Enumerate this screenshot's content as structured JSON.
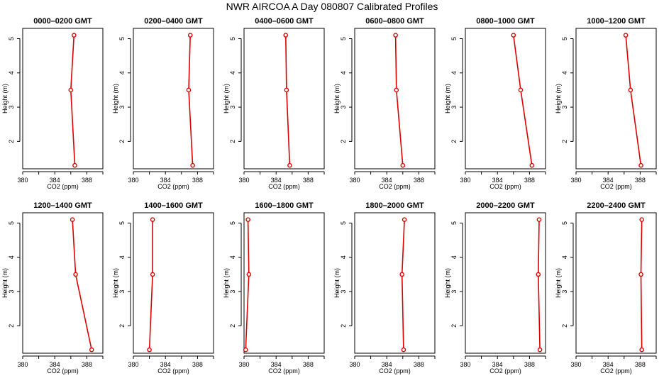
{
  "chart_data": {
    "type": "line",
    "title": "NWR AIRCOA A  Day 080807  Calibrated Profiles",
    "xlabel": "CO2 (ppm)",
    "ylabel": "Height (m)",
    "xlim": [
      380,
      390
    ],
    "ylim": [
      1.2,
      5.3
    ],
    "x_ticks": [
      "380",
      "384",
      "388"
    ],
    "x_tick_values": [
      380,
      382,
      384,
      386,
      388,
      390
    ],
    "y_ticks": [
      "2",
      "3",
      "4",
      "5"
    ],
    "y_tick_values": [
      2,
      3,
      4,
      5
    ],
    "heights": [
      5.1,
      3.5,
      1.3
    ],
    "panels": [
      {
        "title": "0000–0200 GMT",
        "co2": [
          386.4,
          386.0,
          386.5
        ]
      },
      {
        "title": "0200–0400 GMT",
        "co2": [
          387.1,
          386.9,
          387.4
        ]
      },
      {
        "title": "0400–0600 GMT",
        "co2": [
          385.2,
          385.3,
          385.7
        ]
      },
      {
        "title": "0600–0800 GMT",
        "co2": [
          385.1,
          385.2,
          386.0
        ]
      },
      {
        "title": "0800–1000 GMT",
        "co2": [
          386.0,
          386.9,
          388.3
        ]
      },
      {
        "title": "1000–1200 GMT",
        "co2": [
          386.2,
          386.8,
          388.1
        ]
      },
      {
        "title": "1200–1400 GMT",
        "co2": [
          386.2,
          386.6,
          388.6
        ]
      },
      {
        "title": "1400–1600 GMT",
        "co2": [
          382.4,
          382.4,
          382.0
        ]
      },
      {
        "title": "1600–1800 GMT",
        "co2": [
          380.5,
          380.6,
          380.2
        ]
      },
      {
        "title": "1800–2000 GMT",
        "co2": [
          386.2,
          385.9,
          386.1
        ]
      },
      {
        "title": "2000–2200 GMT",
        "co2": [
          389.2,
          389.1,
          389.3
        ]
      },
      {
        "title": "2200–2400 GMT",
        "co2": [
          388.2,
          388.1,
          388.2
        ]
      }
    ]
  }
}
